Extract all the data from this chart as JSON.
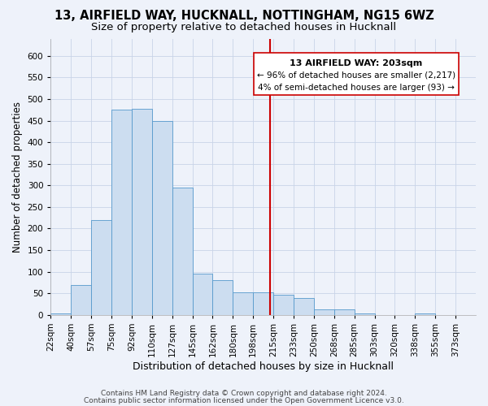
{
  "title1": "13, AIRFIELD WAY, HUCKNALL, NOTTINGHAM, NG15 6WZ",
  "title2": "Size of property relative to detached houses in Hucknall",
  "xlabel": "Distribution of detached houses by size in Hucknall",
  "ylabel": "Number of detached properties",
  "footer1": "Contains HM Land Registry data © Crown copyright and database right 2024.",
  "footer2": "Contains public sector information licensed under the Open Government Licence v3.0.",
  "annotation_title": "13 AIRFIELD WAY: 203sqm",
  "annotation_line1": "← 96% of detached houses are smaller (2,217)",
  "annotation_line2": "4% of semi-detached houses are larger (93) →",
  "bar_labels": [
    "22sqm",
    "40sqm",
    "57sqm",
    "75sqm",
    "92sqm",
    "110sqm",
    "127sqm",
    "145sqm",
    "162sqm",
    "180sqm",
    "198sqm",
    "215sqm",
    "233sqm",
    "250sqm",
    "268sqm",
    "285sqm",
    "303sqm",
    "320sqm",
    "338sqm",
    "355sqm",
    "373sqm"
  ],
  "bar_values": [
    3,
    70,
    220,
    475,
    478,
    450,
    295,
    95,
    80,
    53,
    52,
    47,
    40,
    12,
    12,
    3,
    0,
    0,
    3,
    0,
    0
  ],
  "bin_edges": [
    13.5,
    31,
    48.5,
    66,
    83.5,
    101,
    118.5,
    136,
    153.5,
    171,
    188.5,
    206,
    223.5,
    241,
    258.5,
    276,
    293.5,
    311,
    328.5,
    346,
    363.5,
    381
  ],
  "vline_x": 203,
  "bar_color": "#ccddf0",
  "bar_edge_color": "#5599cc",
  "vline_color": "#cc0000",
  "grid_color": "#c8d4e8",
  "bg_color": "#eef2fa",
  "annotation_box_color": "#ffffff",
  "annotation_box_edge": "#cc0000",
  "ylim": [
    0,
    640
  ],
  "xlim": [
    13.5,
    381
  ],
  "yticks": [
    0,
    50,
    100,
    150,
    200,
    250,
    300,
    350,
    400,
    450,
    500,
    550,
    600
  ],
  "title1_fontsize": 10.5,
  "title2_fontsize": 9.5,
  "axis_fontsize": 7.5,
  "xlabel_fontsize": 9,
  "ylabel_fontsize": 8.5,
  "footer_fontsize": 6.5
}
